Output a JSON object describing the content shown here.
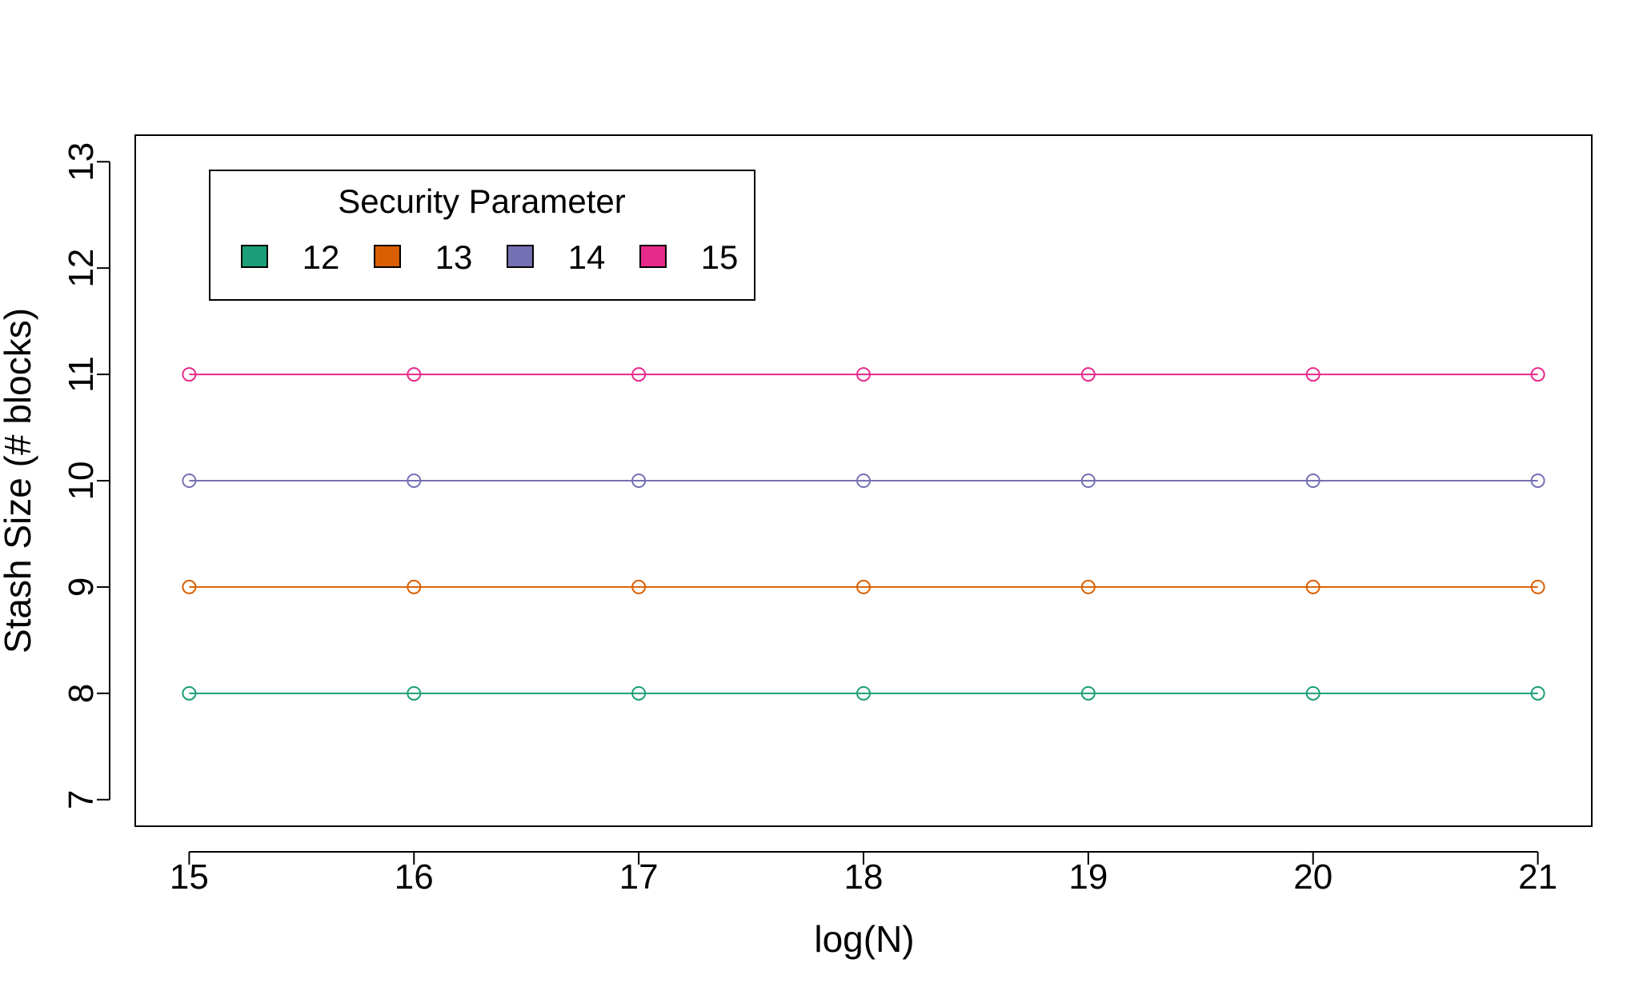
{
  "chart_data": {
    "type": "line",
    "title": "",
    "xlabel": "log(N)",
    "ylabel": "Stash Size (# blocks)",
    "x": [
      15,
      16,
      17,
      18,
      19,
      20,
      21
    ],
    "xlim": [
      14.76,
      21.24
    ],
    "ylim": [
      6.75,
      13.25
    ],
    "xticks": [
      15,
      16,
      17,
      18,
      19,
      20,
      21
    ],
    "yticks": [
      7,
      8,
      9,
      10,
      11,
      12,
      13
    ],
    "grid": false,
    "legend": {
      "title": "Security Parameter",
      "position": "top-left",
      "orientation": "horizontal"
    },
    "series": [
      {
        "name": "12",
        "color": "#1b9e77",
        "values": [
          8,
          8,
          8,
          8,
          8,
          8,
          8
        ]
      },
      {
        "name": "13",
        "color": "#d95f02",
        "values": [
          9,
          9,
          9,
          9,
          9,
          9,
          9
        ]
      },
      {
        "name": "14",
        "color": "#7570b3",
        "values": [
          10,
          10,
          10,
          10,
          10,
          10,
          10
        ]
      },
      {
        "name": "15",
        "color": "#e7298a",
        "values": [
          11,
          11,
          11,
          11,
          11,
          11,
          11
        ]
      }
    ]
  }
}
